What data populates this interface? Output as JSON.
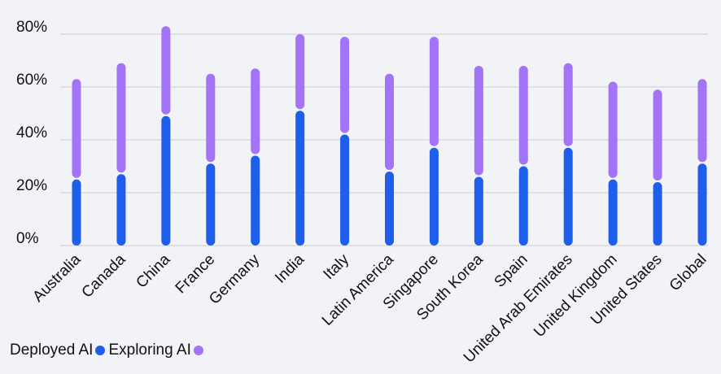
{
  "chart_data": {
    "type": "bar",
    "stacked": true,
    "categories": [
      "Australia",
      "Canada",
      "China",
      "France",
      "Germany",
      "India",
      "Italy",
      "Latin America",
      "Singapore",
      "South Korea",
      "Spain",
      "United Arab Emirates",
      "United Kingdom",
      "United States",
      "Global"
    ],
    "series": [
      {
        "name": "Deployed AI",
        "color": "#1f5eea",
        "values": [
          25,
          27,
          49,
          31,
          34,
          51,
          42,
          28,
          37,
          26,
          30,
          37,
          25,
          24,
          31
        ]
      },
      {
        "name": "Exploring AI",
        "color": "#a374f5",
        "values": [
          38,
          42,
          34,
          34,
          33,
          29,
          37,
          37,
          42,
          42,
          38,
          32,
          37,
          35,
          32
        ]
      }
    ],
    "ylim": [
      0,
      80
    ],
    "yticks": [
      "0%",
      "20%",
      "40%",
      "60%",
      "80%"
    ],
    "ytick_values": [
      0,
      20,
      40,
      60,
      80
    ],
    "grid": true,
    "legend_position": "bottom-left"
  }
}
